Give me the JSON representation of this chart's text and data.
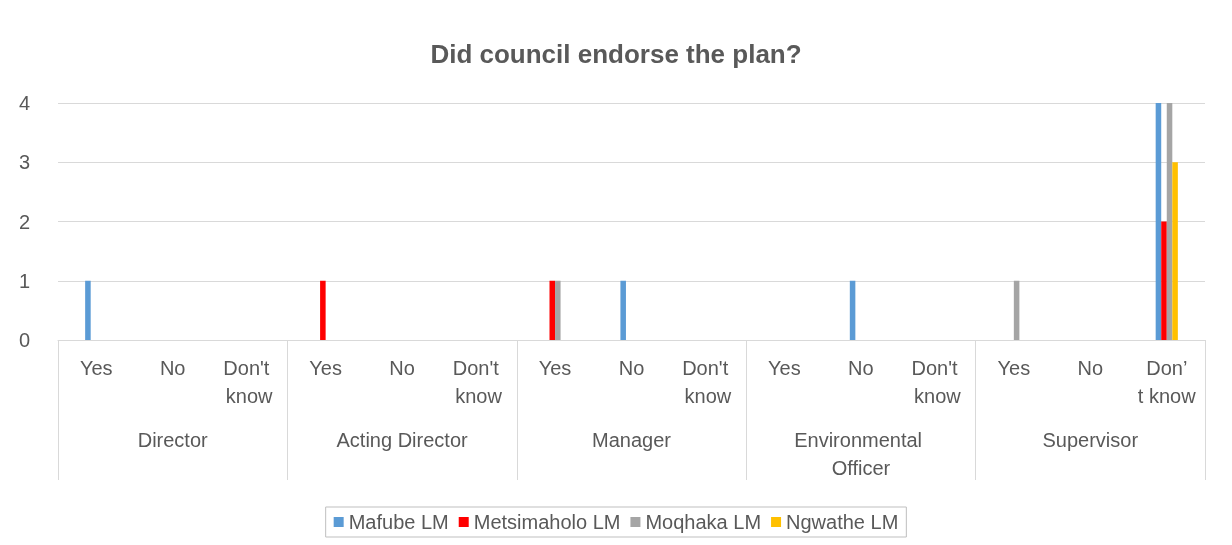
{
  "chart_data": {
    "type": "bar",
    "title": "Did council endorse the plan?",
    "categories": [
      "Yes",
      "No",
      "Don't know",
      "Yes",
      "No",
      "Don't know",
      "Yes",
      "No",
      "Don't know",
      "Yes",
      "No",
      "Don't know",
      "Yes",
      "No",
      "Don’t know"
    ],
    "annotations": [
      "Director",
      "Acting Director",
      "Manager",
      "Environmental Officer",
      "Supervisor"
    ],
    "series": [
      {
        "name": "Mafube LM",
        "color": "#5b9bd5",
        "values": [
          1,
          0,
          0,
          0,
          0,
          0,
          0,
          1,
          0,
          0,
          1,
          0,
          0,
          0,
          4
        ]
      },
      {
        "name": "Metsimaholo LM",
        "color": "#ff0000",
        "values": [
          0,
          0,
          0,
          1,
          0,
          0,
          1,
          0,
          0,
          0,
          0,
          0,
          0,
          0,
          2
        ]
      },
      {
        "name": "Moqhaka LM",
        "color": "#a5a5a5",
        "values": [
          0,
          0,
          0,
          0,
          0,
          0,
          1,
          0,
          0,
          0,
          0,
          0,
          1,
          0,
          4
        ]
      },
      {
        "name": "Ngwathe LM",
        "color": "#ffc000",
        "values": [
          0,
          0,
          0,
          0,
          0,
          0,
          0,
          0,
          0,
          0,
          0,
          0,
          0,
          0,
          3
        ]
      }
    ],
    "ylim": [
      0,
      4
    ],
    "yticks": [
      0,
      1,
      2,
      3,
      4
    ],
    "grid": "y",
    "legend": "bottom"
  }
}
